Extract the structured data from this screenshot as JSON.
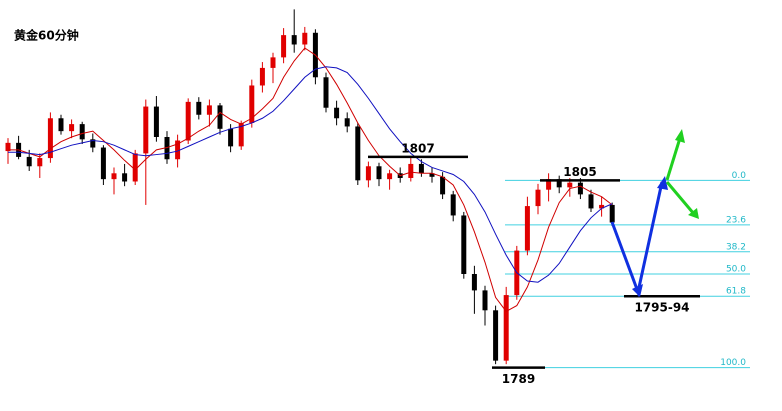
{
  "chart_data": {
    "type": "candlestick",
    "title": "黄金60分钟",
    "ylim": [
      1785.3,
      1820.4
    ],
    "up_color": "#e00000",
    "down_color": "#000000",
    "open": [
      1807.5,
      1808.2,
      1807.0,
      1806.2,
      1806.9,
      1810.3,
      1809.2,
      1809.8,
      1808.5,
      1807.8,
      1805.1,
      1805.6,
      1804.9,
      1807.3,
      1811.3,
      1808.7,
      1806.8,
      1808.4,
      1811.7,
      1810.6,
      1811.4,
      1809.4,
      1807.9,
      1809.9,
      1813.1,
      1814.6,
      1815.5,
      1817.4,
      1816.6,
      1817.6,
      1813.8,
      1811.2,
      1810.3,
      1809.6,
      1805.0,
      1806.2,
      1805.1,
      1805.6,
      1805.2,
      1806.4,
      1805.6,
      1805.3,
      1803.8,
      1802.0,
      1797.0,
      1795.6,
      1793.9,
      1789.6,
      1795.2,
      1799.0,
      1802.8,
      1804.2,
      1805.1,
      1804.4,
      1804.8,
      1803.8,
      1802.6,
      1802.9
    ],
    "high": [
      1808.6,
      1808.8,
      1807.6,
      1807.3,
      1810.8,
      1810.6,
      1810.2,
      1810.0,
      1809.0,
      1808.0,
      1806.1,
      1806.4,
      1807.6,
      1811.9,
      1812.2,
      1809.2,
      1808.9,
      1812.0,
      1812.1,
      1811.9,
      1811.6,
      1809.8,
      1810.1,
      1813.6,
      1815.1,
      1815.9,
      1818.0,
      1819.6,
      1818.1,
      1817.9,
      1814.2,
      1811.8,
      1810.8,
      1809.9,
      1806.6,
      1806.5,
      1805.9,
      1806.1,
      1806.9,
      1806.8,
      1806.1,
      1805.7,
      1804.1,
      1802.3,
      1797.7,
      1796.0,
      1794.3,
      1795.9,
      1799.4,
      1803.6,
      1804.7,
      1805.6,
      1805.4,
      1805.2,
      1805.2,
      1804.2,
      1803.6,
      1803.1
    ],
    "low": [
      1806.4,
      1806.8,
      1805.8,
      1805.2,
      1806.5,
      1808.9,
      1808.6,
      1808.1,
      1807.4,
      1804.6,
      1803.8,
      1804.5,
      1804.6,
      1802.9,
      1808.3,
      1806.4,
      1806.1,
      1808.1,
      1810.2,
      1809.6,
      1808.9,
      1807.4,
      1807.6,
      1809.5,
      1812.5,
      1813.3,
      1815.0,
      1815.9,
      1816.1,
      1813.2,
      1810.8,
      1809.7,
      1809.1,
      1804.6,
      1804.4,
      1804.5,
      1804.2,
      1804.8,
      1804.9,
      1805.3,
      1804.8,
      1803.4,
      1801.5,
      1796.6,
      1793.6,
      1792.6,
      1789.3,
      1789.3,
      1794.8,
      1798.6,
      1802.1,
      1803.2,
      1803.9,
      1803.6,
      1803.4,
      1802.3,
      1801.9,
      1801.1
    ],
    "close": [
      1808.2,
      1807.0,
      1806.2,
      1806.9,
      1810.3,
      1809.2,
      1809.8,
      1808.5,
      1807.8,
      1805.1,
      1805.6,
      1804.9,
      1807.3,
      1811.3,
      1808.7,
      1806.8,
      1808.4,
      1811.7,
      1810.6,
      1811.4,
      1809.4,
      1807.9,
      1809.9,
      1813.1,
      1814.6,
      1815.5,
      1817.4,
      1816.6,
      1817.6,
      1813.8,
      1811.2,
      1810.3,
      1809.6,
      1805.0,
      1806.2,
      1805.1,
      1805.6,
      1805.2,
      1806.4,
      1805.6,
      1805.3,
      1803.8,
      1802.0,
      1797.0,
      1795.6,
      1793.9,
      1789.6,
      1795.2,
      1799.0,
      1802.8,
      1804.2,
      1805.1,
      1804.4,
      1804.8,
      1803.8,
      1802.6,
      1802.9,
      1801.4
    ],
    "series": [
      {
        "color": "#d00000",
        "values": [
          1807.6,
          1807.6,
          1807.3,
          1807.0,
          1807.7,
          1808.3,
          1808.7,
          1809.0,
          1809.2,
          1808.4,
          1807.6,
          1806.7,
          1805.9,
          1806.8,
          1807.6,
          1807.8,
          1808.1,
          1808.6,
          1809.2,
          1809.7,
          1810.8,
          1810.2,
          1809.8,
          1810.3,
          1811.1,
          1812.0,
          1813.8,
          1815.2,
          1816.3,
          1815.7,
          1814.6,
          1813.2,
          1811.6,
          1809.9,
          1808.4,
          1807.1,
          1806.2,
          1805.4,
          1805.7,
          1805.6,
          1805.6,
          1805.3,
          1804.6,
          1802.9,
          1800.6,
          1798.0,
          1795.0,
          1793.8,
          1794.3,
          1795.9,
          1798.2,
          1801.0,
          1803.1,
          1804.3,
          1804.5,
          1804.0,
          1803.6,
          1802.9
        ]
      },
      {
        "color": "#1010c0",
        "values": [
          1807.4,
          1807.4,
          1807.3,
          1807.2,
          1807.4,
          1807.7,
          1808.0,
          1808.2,
          1808.4,
          1808.3,
          1808.0,
          1807.6,
          1807.2,
          1807.1,
          1807.2,
          1807.3,
          1807.5,
          1807.9,
          1808.3,
          1808.7,
          1809.1,
          1809.4,
          1809.6,
          1809.9,
          1810.3,
          1810.9,
          1811.8,
          1812.8,
          1813.8,
          1814.5,
          1814.7,
          1814.6,
          1814.2,
          1813.2,
          1812.0,
          1810.7,
          1809.4,
          1808.3,
          1807.3,
          1806.6,
          1806.1,
          1805.8,
          1805.5,
          1804.9,
          1803.8,
          1802.3,
          1800.4,
          1798.6,
          1797.1,
          1796.4,
          1796.3,
          1796.9,
          1797.9,
          1799.3,
          1800.7,
          1801.8,
          1802.6,
          1803.0
        ]
      }
    ],
    "levels": [
      1807,
      1805,
      1789
    ],
    "target": {
      "label": "1795-94",
      "value": 1795.1
    },
    "fib": {
      "color": "#40d0e0",
      "labels": [
        "0.0",
        "23.6",
        "38.2",
        "50.0",
        "61.8",
        "100.0"
      ],
      "prices": [
        1805,
        1801.2,
        1798.9,
        1797,
        1795.1,
        1789
      ]
    }
  }
}
